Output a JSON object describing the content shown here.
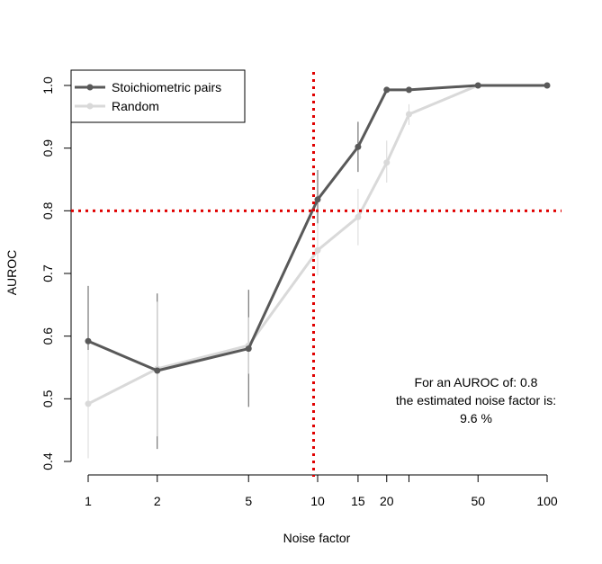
{
  "chart_data": {
    "type": "line",
    "title": "",
    "xlabel": "Noise factor",
    "ylabel": "AUROC",
    "x_scale": "log",
    "xlim": [
      1,
      100
    ],
    "ylim": [
      0.4,
      1.0
    ],
    "x_ticks": [
      1,
      2,
      5,
      10,
      15,
      20,
      25,
      50,
      100
    ],
    "x_tick_labels": [
      "1",
      "2",
      "5",
      "10",
      "15",
      "20",
      "",
      "50",
      "100"
    ],
    "y_ticks": [
      0.4,
      0.5,
      0.6,
      0.7,
      0.8,
      0.9,
      1.0
    ],
    "y_tick_labels": [
      "0.4",
      "0.5",
      "0.6",
      "0.7",
      "0.8",
      "0.9",
      "1.0"
    ],
    "x": [
      1,
      2,
      5,
      10,
      15,
      20,
      25,
      50,
      100
    ],
    "series": [
      {
        "name": "Stoichiometric pairs",
        "color": "#595959",
        "values": [
          0.592,
          0.545,
          0.58,
          0.818,
          0.902,
          0.993,
          0.993,
          1.0,
          1.0
        ],
        "error_low": [
          0.5,
          0.42,
          0.487,
          0.775,
          0.862,
          0.993,
          0.993,
          1.0,
          1.0
        ],
        "error_high": [
          0.68,
          0.668,
          0.674,
          0.865,
          0.942,
          0.993,
          0.993,
          1.0,
          1.0
        ]
      },
      {
        "name": "Random",
        "color": "#d9d9d9",
        "values": [
          0.492,
          0.548,
          0.585,
          0.737,
          0.79,
          0.877,
          0.954,
          1.0,
          1.0
        ],
        "error_low": [
          0.405,
          0.44,
          0.54,
          0.697,
          0.745,
          0.845,
          0.937,
          1.0,
          1.0
        ],
        "error_high": [
          0.578,
          0.655,
          0.63,
          0.78,
          0.835,
          0.912,
          0.97,
          1.0,
          1.0
        ]
      }
    ],
    "reference_lines": {
      "auroc": 0.8,
      "noise_factor": 9.6,
      "color": "#e00000"
    },
    "legend": {
      "position": "top-left",
      "entries": [
        "Stoichiometric pairs",
        "Random"
      ]
    },
    "annotation": {
      "line1": "For an AUROC of: 0.8",
      "line2": "the estimated noise factor is:",
      "line3": "9.6 %"
    }
  }
}
